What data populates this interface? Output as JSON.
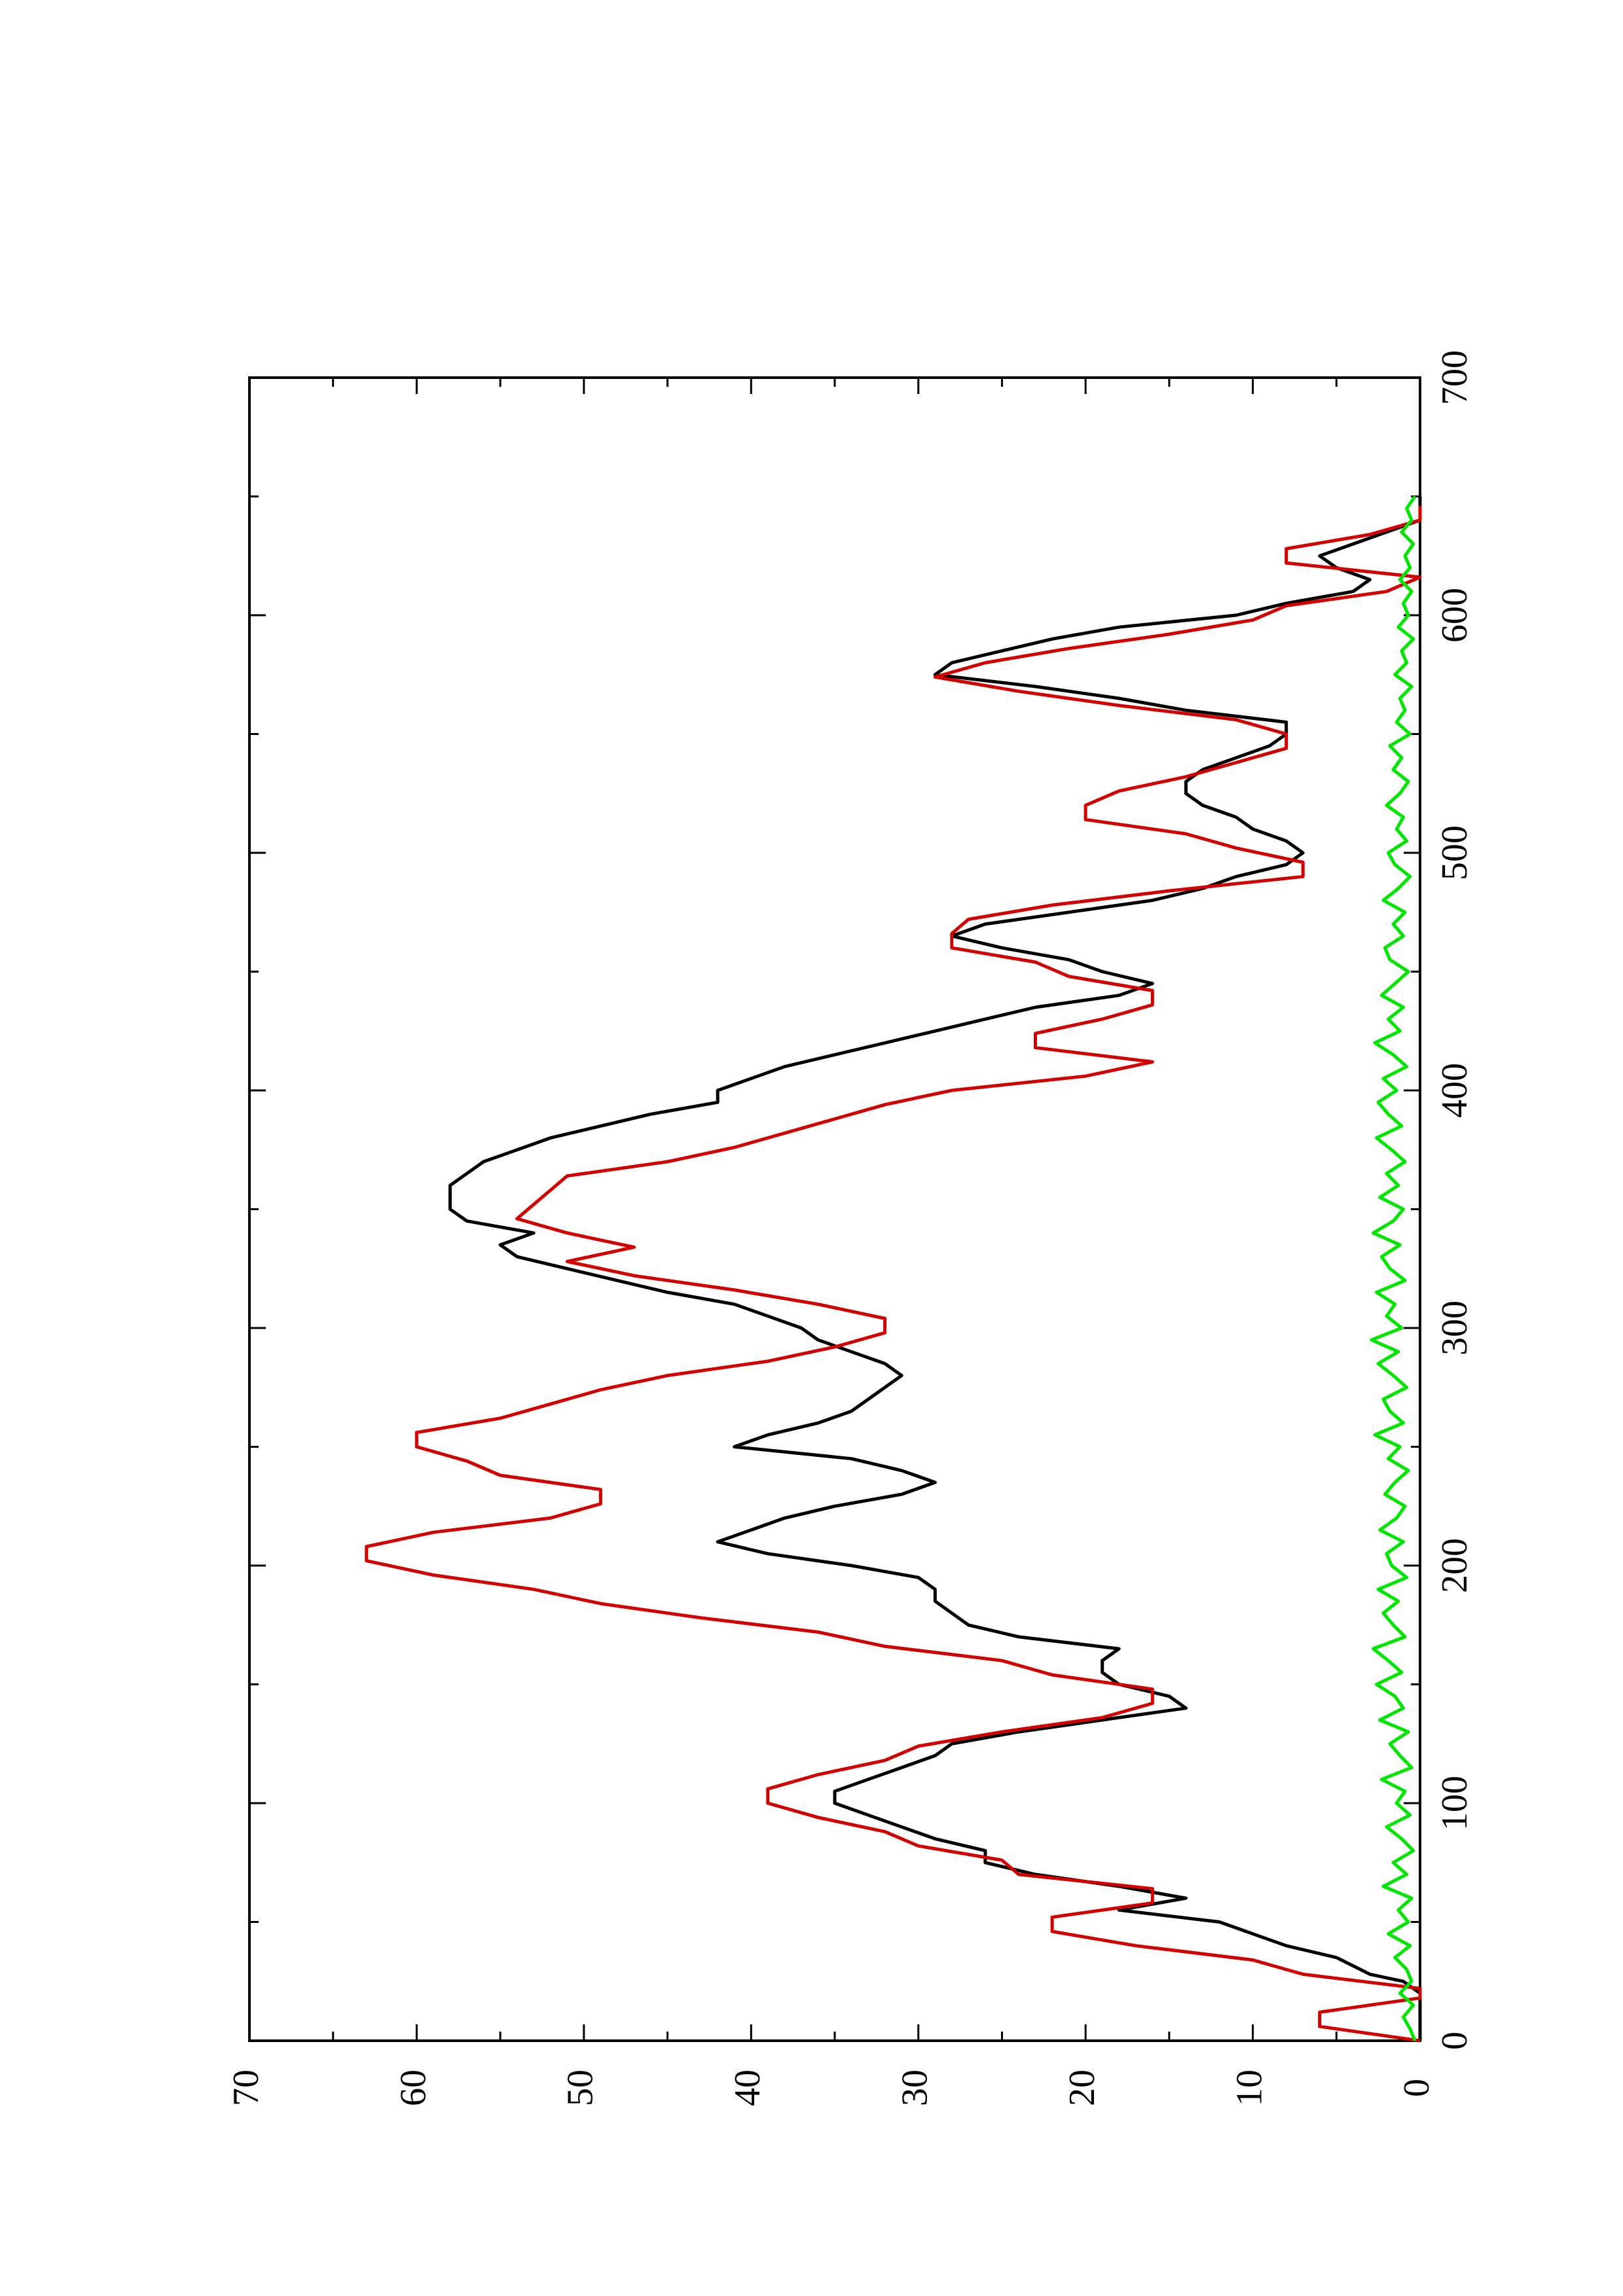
{
  "chart_data": {
    "type": "line",
    "orientation": "rotated-90-ccw",
    "title": "",
    "xlabel": "",
    "ylabel": "",
    "xlim": [
      0,
      700
    ],
    "ylim": [
      0,
      70
    ],
    "x_ticks": [
      0,
      100,
      200,
      300,
      400,
      500,
      600,
      700
    ],
    "y_ticks": [
      0,
      10,
      20,
      30,
      40,
      50,
      60,
      70
    ],
    "x_tick_labels": [
      "0",
      "100",
      "200",
      "300",
      "400",
      "500",
      "600",
      "700"
    ],
    "y_tick_labels": [
      "0",
      "10",
      "20",
      "30",
      "40",
      "50",
      "60",
      "70"
    ],
    "grid": false,
    "legend": "none",
    "series": [
      {
        "color": "#000000",
        "x": [
          0,
          10,
          20,
          25,
          28,
          35,
          40,
          50,
          55,
          60,
          65,
          70,
          75,
          80,
          85,
          90,
          95,
          100,
          105,
          110,
          115,
          120,
          125,
          130,
          135,
          140,
          145,
          150,
          155,
          160,
          165,
          170,
          175,
          180,
          185,
          190,
          195,
          200,
          205,
          210,
          215,
          220,
          225,
          230,
          235,
          240,
          245,
          250,
          255,
          260,
          265,
          270,
          275,
          280,
          285,
          290,
          295,
          300,
          305,
          310,
          315,
          320,
          325,
          330,
          335,
          340,
          345,
          350,
          355,
          360,
          365,
          370,
          375,
          380,
          385,
          390,
          395,
          400,
          405,
          410,
          415,
          420,
          425,
          430,
          435,
          440,
          445,
          450,
          455,
          460,
          465,
          470,
          475,
          480,
          485,
          490,
          495,
          500,
          505,
          510,
          515,
          520,
          525,
          530,
          535,
          540,
          545,
          550,
          555,
          560,
          565,
          570,
          575,
          580,
          585,
          590,
          595,
          600,
          605,
          610,
          615,
          620,
          625,
          630,
          635,
          640,
          645,
          650
        ],
        "y": [
          0,
          0,
          0,
          1,
          3,
          5,
          8,
          12,
          18,
          14,
          18,
          23,
          26,
          26,
          29,
          31,
          33,
          35,
          35,
          33,
          31,
          29,
          28,
          24,
          19,
          14,
          15,
          18,
          19,
          19,
          18,
          24,
          27,
          28,
          29,
          29,
          30,
          34,
          39,
          42,
          40,
          38,
          35,
          31,
          29,
          31,
          34,
          41,
          39,
          36,
          34,
          33,
          32,
          31,
          32,
          34,
          36,
          37,
          39,
          41,
          45,
          48,
          51,
          54,
          55,
          53,
          57,
          58,
          58,
          58,
          57,
          56,
          54,
          52,
          49,
          46,
          42,
          42,
          40,
          38,
          35,
          32,
          29,
          26,
          23,
          18,
          16,
          19,
          21,
          25,
          28,
          26,
          21,
          16,
          13,
          11,
          8,
          7,
          8,
          10,
          11,
          13,
          14,
          14,
          13,
          11,
          9,
          8,
          8,
          14,
          18,
          23,
          29,
          28,
          25,
          22,
          18,
          11,
          8,
          4,
          3,
          5,
          6,
          4,
          2,
          0,
          0,
          0
        ]
      },
      {
        "color": "#d40000",
        "x": [
          0,
          6,
          12,
          18,
          22,
          28,
          34,
          40,
          46,
          52,
          58,
          64,
          70,
          76,
          82,
          88,
          94,
          100,
          106,
          112,
          118,
          124,
          130,
          136,
          142,
          148,
          154,
          160,
          166,
          172,
          178,
          184,
          190,
          196,
          202,
          208,
          214,
          220,
          226,
          232,
          238,
          244,
          250,
          256,
          262,
          268,
          274,
          280,
          286,
          292,
          298,
          304,
          310,
          316,
          322,
          328,
          334,
          340,
          346,
          352,
          358,
          364,
          370,
          376,
          382,
          388,
          394,
          400,
          406,
          412,
          418,
          424,
          430,
          436,
          442,
          448,
          454,
          460,
          466,
          472,
          478,
          484,
          490,
          496,
          502,
          508,
          514,
          520,
          526,
          532,
          538,
          544,
          550,
          556,
          562,
          568,
          574,
          580,
          586,
          592,
          598,
          604,
          610,
          616,
          622,
          628,
          634,
          640,
          646
        ],
        "y": [
          0,
          6,
          6,
          0,
          0,
          7,
          10,
          17,
          22,
          22,
          16,
          16,
          24,
          25,
          30,
          32,
          36,
          39,
          39,
          36,
          32,
          30,
          25,
          19,
          16,
          16,
          22,
          25,
          32,
          36,
          43,
          49,
          53,
          59,
          63,
          63,
          59,
          52,
          49,
          49,
          55,
          57,
          60,
          60,
          55,
          52,
          49,
          45,
          39,
          35,
          32,
          32,
          36,
          41,
          47,
          51,
          47,
          51,
          54,
          53,
          52,
          51,
          45,
          41,
          38,
          35,
          32,
          28,
          20,
          16,
          23,
          23,
          19,
          16,
          16,
          21,
          23,
          28,
          28,
          27,
          22,
          15,
          7,
          7,
          11,
          14,
          20,
          20,
          18,
          14,
          11,
          8,
          8,
          11,
          18,
          24,
          29,
          26,
          21,
          15,
          10,
          8,
          2,
          0,
          8,
          8,
          3,
          0,
          0
        ]
      },
      {
        "color": "#00e600",
        "x": [
          0,
          5,
          10,
          15,
          20,
          25,
          30,
          35,
          40,
          45,
          50,
          55,
          60,
          65,
          70,
          75,
          80,
          85,
          90,
          95,
          100,
          105,
          110,
          115,
          120,
          125,
          130,
          135,
          140,
          145,
          150,
          155,
          160,
          165,
          170,
          175,
          180,
          185,
          190,
          195,
          200,
          205,
          210,
          215,
          220,
          225,
          230,
          235,
          240,
          245,
          250,
          255,
          260,
          265,
          270,
          275,
          280,
          285,
          290,
          295,
          300,
          305,
          310,
          315,
          320,
          325,
          330,
          335,
          340,
          345,
          350,
          355,
          360,
          365,
          370,
          375,
          380,
          385,
          390,
          395,
          400,
          405,
          410,
          415,
          420,
          425,
          430,
          435,
          440,
          445,
          450,
          455,
          460,
          465,
          470,
          475,
          480,
          485,
          490,
          495,
          500,
          505,
          510,
          515,
          520,
          525,
          530,
          535,
          540,
          545,
          550,
          555,
          560,
          565,
          570,
          575,
          580,
          585,
          590,
          595,
          600,
          605,
          610,
          615,
          620,
          625,
          630,
          635,
          640,
          645,
          650
        ],
        "y": [
          0.3,
          0.6,
          1.0,
          0.4,
          1.2,
          0.5,
          0.8,
          1.5,
          0.6,
          1.9,
          0.7,
          1.3,
          0.5,
          2.2,
          0.8,
          1.6,
          0.4,
          1.1,
          2.0,
          0.6,
          1.4,
          0.9,
          2.3,
          0.5,
          1.2,
          1.8,
          0.7,
          2.4,
          1.0,
          1.5,
          2.6,
          1.1,
          1.9,
          2.8,
          0.9,
          1.6,
          2.2,
          1.3,
          2.5,
          0.8,
          1.7,
          2.0,
          1.0,
          2.4,
          1.4,
          0.9,
          2.1,
          1.5,
          0.7,
          1.9,
          1.2,
          2.7,
          1.0,
          1.8,
          2.2,
          0.8,
          1.6,
          2.5,
          1.3,
          2.9,
          1.1,
          2.0,
          1.5,
          2.6,
          0.9,
          1.8,
          2.3,
          1.2,
          2.8,
          1.6,
          1.0,
          2.4,
          1.3,
          2.0,
          0.9,
          1.7,
          2.6,
          1.1,
          1.9,
          2.5,
          1.4,
          2.2,
          0.8,
          1.6,
          2.7,
          1.2,
          1.9,
          1.0,
          2.3,
          1.5,
          0.7,
          1.8,
          2.1,
          1.0,
          1.6,
          0.9,
          2.2,
          1.3,
          0.6,
          1.5,
          1.9,
          0.8,
          1.4,
          1.0,
          2.0,
          1.2,
          0.7,
          1.6,
          1.1,
          1.8,
          0.6,
          1.4,
          0.9,
          1.2,
          0.5,
          1.5,
          0.8,
          1.1,
          0.4,
          1.3,
          0.7,
          1.0,
          0.5,
          1.2,
          0.6,
          0.9,
          0.4,
          1.1,
          0.5,
          0.8,
          0.3
        ]
      }
    ]
  }
}
